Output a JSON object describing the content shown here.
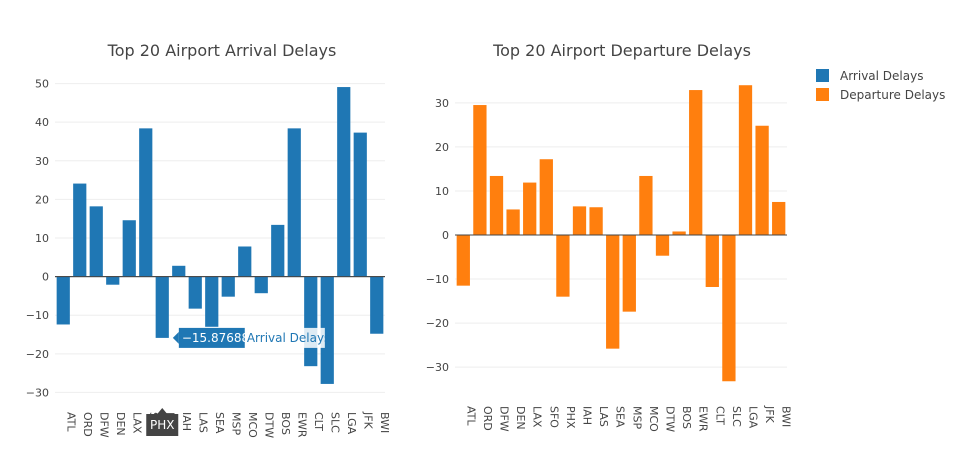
{
  "chart_data": [
    {
      "type": "bar",
      "title": "Top 20 Airport Arrival Delays",
      "xlabel": "",
      "ylabel": "",
      "ylim": [
        -33,
        53
      ],
      "yticks": [
        -30,
        -20,
        -10,
        0,
        10,
        20,
        30,
        40,
        50
      ],
      "categories": [
        "ATL",
        "ORD",
        "DFW",
        "DEN",
        "LAX",
        "SFO",
        "PHX",
        "IAH",
        "LAS",
        "SEA",
        "MSP",
        "MCO",
        "DTW",
        "BOS",
        "EWR",
        "CLT",
        "SLC",
        "LGA",
        "JFK",
        "BWI"
      ],
      "series": [
        {
          "name": "Arrival Delays",
          "values": [
            -12.4,
            24.1,
            18.2,
            -2.1,
            14.6,
            38.4,
            -15.87688,
            2.8,
            -8.3,
            -13.0,
            -5.2,
            7.8,
            -4.3,
            13.4,
            38.4,
            -23.2,
            -27.8,
            49.1,
            37.3,
            -14.8
          ]
        }
      ],
      "hover": {
        "category": "PHX",
        "value": "−15.87688",
        "series": "Arrival Delays"
      }
    },
    {
      "type": "bar",
      "title": "Top 20 Airport Departure Delays",
      "xlabel": "",
      "ylabel": "",
      "ylim": [
        -37,
        37
      ],
      "yticks": [
        -30,
        -20,
        -10,
        0,
        10,
        20,
        30
      ],
      "categories": [
        "ATL",
        "ORD",
        "DFW",
        "DEN",
        "LAX",
        "SFO",
        "PHX",
        "IAH",
        "LAS",
        "SEA",
        "MSP",
        "MCO",
        "DTW",
        "BOS",
        "EWR",
        "CLT",
        "SLC",
        "LGA",
        "JFK",
        "BWI"
      ],
      "series": [
        {
          "name": "Departure Delays",
          "values": [
            -11.5,
            29.5,
            13.4,
            5.8,
            11.9,
            17.2,
            -14.0,
            6.5,
            6.3,
            -25.8,
            -17.4,
            13.4,
            -4.7,
            0.8,
            32.9,
            -11.8,
            -33.2,
            34.0,
            24.8,
            7.5
          ]
        }
      ]
    }
  ],
  "legend": {
    "placement": "top-right",
    "items": [
      {
        "label": "Arrival Delays",
        "color": "#1f77b4"
      },
      {
        "label": "Departure Delays",
        "color": "#ff7f0e"
      }
    ]
  },
  "colors": {
    "arrival": "#1f77b4",
    "departure": "#ff7f0e"
  }
}
